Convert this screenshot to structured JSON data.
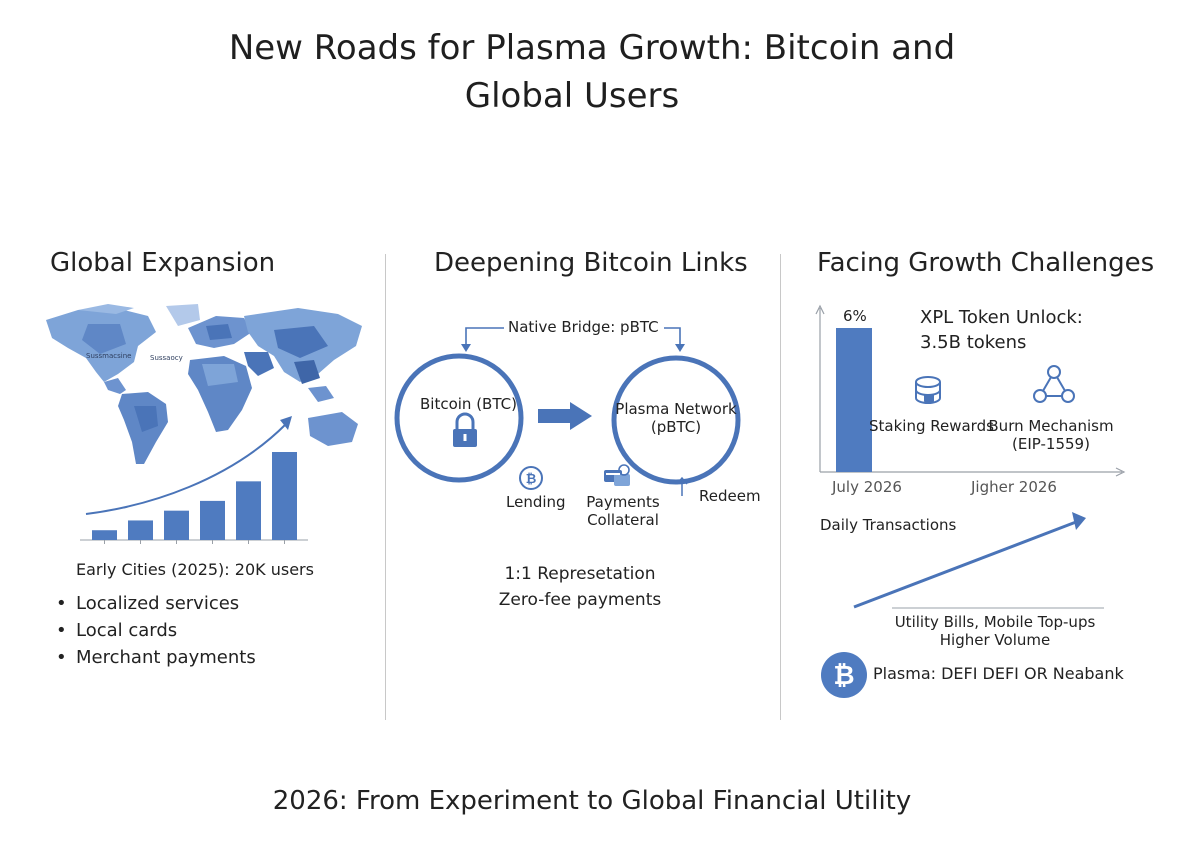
{
  "title": {
    "line1": "New Roads for Plasma Growth: Bitcoin and",
    "line2": "Global Users"
  },
  "col1": {
    "heading": "Global Expansion",
    "map_labels": [
      "Sussmacsine",
      "Sussaocy"
    ],
    "chart_data": {
      "type": "bar",
      "values": [
        1,
        2,
        3,
        4,
        6,
        9
      ],
      "trend": "upward arrow"
    },
    "caption": "Early Cities (2025): 20K users",
    "bullets": [
      "Localized services",
      "Local cards",
      "Merchant payments"
    ]
  },
  "col2": {
    "heading": "Deepening Bitcoin Links",
    "bridge_label": "Native Bridge: pBTC",
    "left_circle": "Bitcoin (BTC)",
    "right_circle_line1": "Plasma Network",
    "right_circle_line2": "(pBTC)",
    "lending": "Lending",
    "payments_line1": "Payments",
    "payments_line2": "Collateral",
    "redeem": "Redeem",
    "rep_line1": "1:1 Represetation",
    "rep_line2": "Zero-fee payments"
  },
  "col3": {
    "heading": "Facing Growth Challenges",
    "bar_value_label": "6%",
    "unlock_line1": "XPL Token Unlock:",
    "unlock_line2": "3.5B tokens",
    "staking": "Staking Rewards",
    "burn_line1": "Burn Mechanism",
    "burn_line2": "(EIP-1559)",
    "x_label_left": "July 2026",
    "x_label_right": "Jigher 2026",
    "daily_tx": "Daily Transactions",
    "utility_line1": "Utility Bills, Mobile Top-ups",
    "utility_line2": "Higher Volume",
    "plasma_label": "Plasma: DEFI DEFI OR Neabank"
  },
  "footer": "2026: From Experiment to Global Financial Utility",
  "colors": {
    "accent": "#4a74b8",
    "accent_light": "#7ea4d8",
    "bar": "#4f7bc0",
    "divider": "#c8c8c8"
  }
}
